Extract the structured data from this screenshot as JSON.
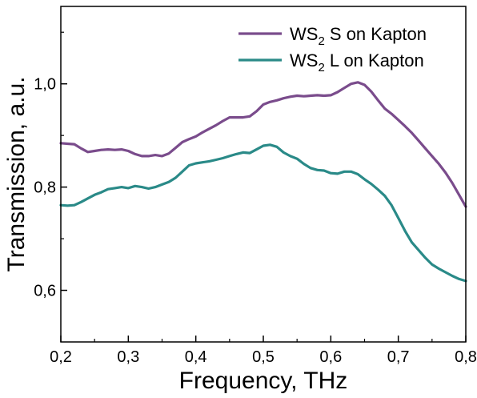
{
  "chart_data": {
    "type": "line",
    "xlabel": "Frequency, THz",
    "ylabel": "Transmission, a.u.",
    "xlim": [
      0.2,
      0.8
    ],
    "ylim": [
      0.5,
      1.15
    ],
    "x_ticks": [
      {
        "value": 0.2,
        "label": "0,2"
      },
      {
        "value": 0.3,
        "label": "0,3"
      },
      {
        "value": 0.4,
        "label": "0,4"
      },
      {
        "value": 0.5,
        "label": "0,5"
      },
      {
        "value": 0.6,
        "label": "0,6"
      },
      {
        "value": 0.7,
        "label": "0,7"
      },
      {
        "value": 0.8,
        "label": "0,8"
      }
    ],
    "y_ticks": [
      {
        "value": 0.6,
        "label": "0,6"
      },
      {
        "value": 0.8,
        "label": "0,8"
      },
      {
        "value": 1.0,
        "label": "1,0"
      }
    ],
    "grid": false,
    "legend_position": "top-right",
    "series": [
      {
        "name": "WS2 S on Kapton",
        "legend_main": "WS",
        "legend_sub": "2",
        "legend_rest": " S on Kapton",
        "color": "#7a4c8c",
        "x": [
          0.2,
          0.21,
          0.22,
          0.23,
          0.24,
          0.25,
          0.26,
          0.27,
          0.28,
          0.29,
          0.3,
          0.31,
          0.32,
          0.33,
          0.34,
          0.35,
          0.36,
          0.37,
          0.38,
          0.39,
          0.4,
          0.41,
          0.42,
          0.43,
          0.44,
          0.45,
          0.46,
          0.47,
          0.48,
          0.49,
          0.5,
          0.51,
          0.52,
          0.53,
          0.54,
          0.55,
          0.56,
          0.57,
          0.58,
          0.59,
          0.6,
          0.61,
          0.62,
          0.63,
          0.64,
          0.65,
          0.66,
          0.67,
          0.68,
          0.69,
          0.7,
          0.71,
          0.72,
          0.73,
          0.74,
          0.75,
          0.76,
          0.77,
          0.78,
          0.79,
          0.8
        ],
        "y": [
          0.885,
          0.884,
          0.883,
          0.875,
          0.868,
          0.87,
          0.872,
          0.873,
          0.872,
          0.873,
          0.87,
          0.864,
          0.86,
          0.86,
          0.862,
          0.86,
          0.865,
          0.876,
          0.887,
          0.893,
          0.898,
          0.906,
          0.913,
          0.92,
          0.928,
          0.935,
          0.935,
          0.935,
          0.937,
          0.947,
          0.96,
          0.965,
          0.968,
          0.972,
          0.975,
          0.977,
          0.976,
          0.977,
          0.978,
          0.977,
          0.978,
          0.984,
          0.992,
          1.0,
          1.003,
          0.998,
          0.985,
          0.968,
          0.952,
          0.942,
          0.93,
          0.918,
          0.905,
          0.89,
          0.875,
          0.86,
          0.845,
          0.828,
          0.808,
          0.785,
          0.762
        ]
      },
      {
        "name": "WS2 L on Kapton",
        "legend_main": "WS",
        "legend_sub": "2",
        "legend_rest": " L on Kapton",
        "color": "#2a8a88",
        "x": [
          0.2,
          0.21,
          0.22,
          0.23,
          0.24,
          0.25,
          0.26,
          0.27,
          0.28,
          0.29,
          0.3,
          0.31,
          0.32,
          0.33,
          0.34,
          0.35,
          0.36,
          0.37,
          0.38,
          0.39,
          0.4,
          0.41,
          0.42,
          0.43,
          0.44,
          0.45,
          0.46,
          0.47,
          0.48,
          0.49,
          0.5,
          0.51,
          0.52,
          0.53,
          0.54,
          0.55,
          0.56,
          0.57,
          0.58,
          0.59,
          0.6,
          0.61,
          0.62,
          0.63,
          0.64,
          0.65,
          0.66,
          0.67,
          0.68,
          0.69,
          0.7,
          0.71,
          0.72,
          0.73,
          0.74,
          0.75,
          0.76,
          0.77,
          0.78,
          0.79,
          0.8
        ],
        "y": [
          0.765,
          0.764,
          0.765,
          0.771,
          0.778,
          0.785,
          0.79,
          0.796,
          0.798,
          0.8,
          0.798,
          0.802,
          0.8,
          0.797,
          0.8,
          0.805,
          0.81,
          0.818,
          0.83,
          0.842,
          0.846,
          0.848,
          0.85,
          0.853,
          0.856,
          0.86,
          0.864,
          0.867,
          0.866,
          0.873,
          0.88,
          0.882,
          0.878,
          0.867,
          0.86,
          0.855,
          0.845,
          0.837,
          0.833,
          0.832,
          0.827,
          0.826,
          0.83,
          0.83,
          0.825,
          0.815,
          0.806,
          0.795,
          0.783,
          0.765,
          0.74,
          0.715,
          0.693,
          0.678,
          0.663,
          0.65,
          0.642,
          0.635,
          0.628,
          0.622,
          0.618
        ]
      }
    ]
  }
}
